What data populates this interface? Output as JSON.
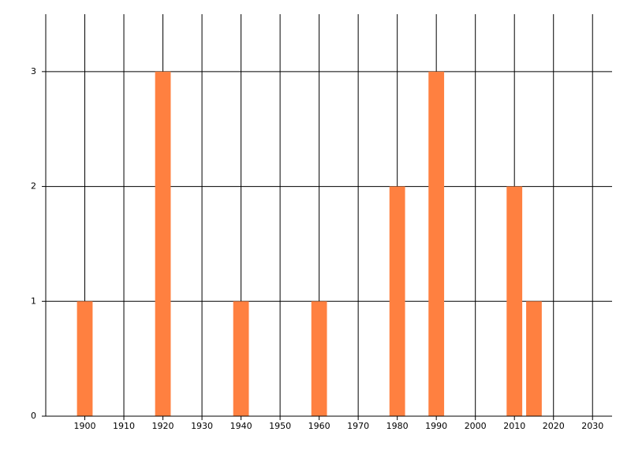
{
  "chart_data": {
    "type": "bar",
    "x": [
      1900,
      1920,
      1940,
      1960,
      1980,
      1990,
      2010,
      2015
    ],
    "values": [
      1,
      3,
      1,
      1,
      2,
      3,
      2,
      1
    ],
    "color": "#ff8040",
    "xlim": [
      1890,
      2035
    ],
    "xticks": [
      1900,
      1910,
      1920,
      1930,
      1940,
      1950,
      1960,
      1970,
      1980,
      1990,
      2000,
      2010,
      2020,
      2030
    ],
    "ylim": [
      0,
      3.5
    ],
    "yticks": [
      0,
      1,
      2,
      3
    ],
    "grid": true
  }
}
